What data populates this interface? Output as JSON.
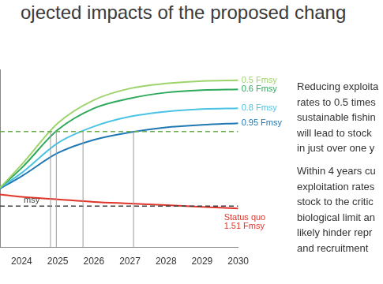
{
  "chart_data": {
    "type": "line",
    "title": "ojected impacts of the proposed chang",
    "x": [
      2023.4,
      2024,
      2025,
      2026,
      2027,
      2028,
      2029,
      2030
    ],
    "series": [
      {
        "name": "0.5 Fmsy",
        "color": "#9fd46c",
        "values": [
          72,
          100,
          150,
          178,
          192,
          198,
          201,
          202
        ]
      },
      {
        "name": "0.6 Fmsy",
        "color": "#2fa95c",
        "values": [
          72,
          96,
          142,
          168,
          180,
          187,
          190,
          191
        ]
      },
      {
        "name": "0.8 Fmsy",
        "color": "#4cc3e3",
        "values": [
          72,
          90,
          126,
          146,
          158,
          164,
          167,
          168
        ]
      },
      {
        "name": "0.95 Fmsy",
        "color": "#1f78b4",
        "values": [
          71,
          86,
          114,
          130,
          139,
          145,
          148,
          150
        ]
      },
      {
        "name": "Status quo 1.51 Fmsy",
        "color": "#e0352b",
        "values": [
          64,
          61,
          58,
          55,
          53,
          51,
          49,
          47
        ]
      }
    ],
    "reference_lines": [
      {
        "y": 140,
        "color": "#6ab04c",
        "line_style": "dashed"
      },
      {
        "y": 50,
        "label": "msy",
        "color": "#404040",
        "line_style": "dashed"
      }
    ],
    "crossings": [
      2024.8,
      2024.96,
      2025.7,
      2027.1
    ],
    "xlim": [
      2023.4,
      2030
    ],
    "xticks": [
      2024,
      2025,
      2026,
      2027,
      2028,
      2029,
      2030
    ],
    "ylim": [
      0,
      215
    ],
    "tick_labels": "x",
    "grid": false,
    "annotations": [
      [
        "Reducing exploita",
        "rates to 0.5 times",
        "sustainable fishin",
        "will lead to stock",
        "in just over one y"
      ],
      [
        "Within 4 years cu",
        "exploitation rates",
        "stock to the critic",
        "biological limit an",
        "likely hinder repr",
        "and recruitment"
      ]
    ]
  }
}
